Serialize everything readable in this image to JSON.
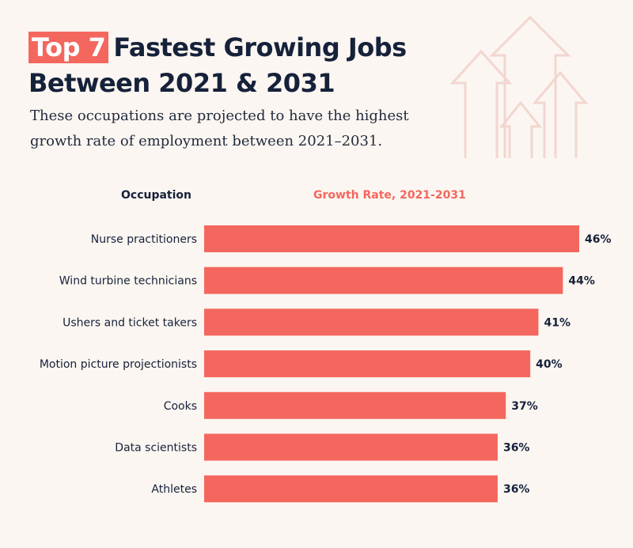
{
  "title": {
    "highlight": "Top 7",
    "line1_rest": "Fastest Growing Jobs",
    "line2": "Between 2021 & 2031"
  },
  "subtitle": {
    "line1": "These occupations are projected to have the highest",
    "line2": "growth rate of employment between 2021–2031."
  },
  "headers": {
    "occupation": "Occupation",
    "growth": "Growth Rate, 2021-2031"
  },
  "colors": {
    "bar": "#f4675e",
    "text": "#16213a",
    "background": "#fbf6f1",
    "arrow_outline": "#f3d6d0"
  },
  "decoration": {
    "icon": "rising-arrows-icon"
  },
  "chart_data": {
    "type": "bar",
    "orientation": "horizontal",
    "categories": [
      "Nurse practitioners",
      "Wind turbine technicians",
      "Ushers and ticket takers",
      "Motion picture projectionists",
      "Cooks",
      "Data scientists",
      "Athletes"
    ],
    "values": [
      46,
      44,
      41,
      40,
      37,
      36,
      36
    ],
    "value_labels": [
      "46%",
      "44%",
      "41%",
      "40%",
      "37%",
      "36%",
      "36%"
    ],
    "unit": "%",
    "xlim": [
      0,
      46
    ]
  }
}
